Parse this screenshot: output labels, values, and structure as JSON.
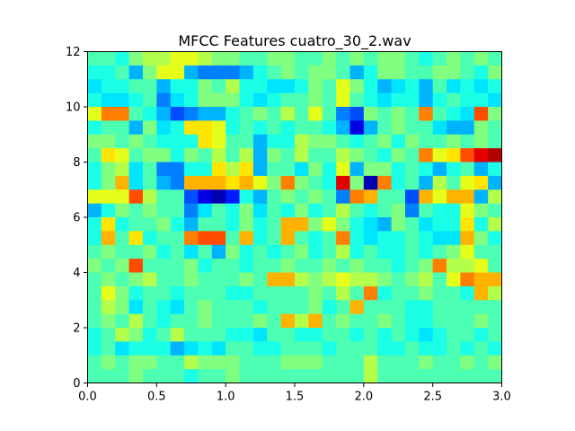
{
  "chart_data": {
    "type": "heatmap",
    "title": "MFCC Features cuatro_30_2.wav",
    "xlabel": "",
    "ylabel": "",
    "xlim": [
      0,
      3
    ],
    "ylim": [
      0,
      12
    ],
    "x_ticks": [
      "0.0",
      "0.5",
      "1.0",
      "1.5",
      "2.0",
      "2.5",
      "3.0"
    ],
    "y_ticks": [
      "0",
      "2",
      "4",
      "6",
      "8",
      "10",
      "12"
    ],
    "colormap": "jet",
    "vmin": 0,
    "vmax": 1,
    "x_bins": 30,
    "y_bins": 24,
    "grid": false,
    "legend": "none",
    "rows": [
      [
        0.45,
        0.45,
        0.4,
        0.5,
        0.55,
        0.55,
        0.6,
        0.6,
        0.55,
        0.5,
        0.5,
        0.45,
        0.45,
        0.5,
        0.5,
        0.45,
        0.45,
        0.5,
        0.45,
        0.5,
        0.45,
        0.5,
        0.5,
        0.45,
        0.4,
        0.45,
        0.5,
        0.45,
        0.5,
        0.45
      ],
      [
        0.4,
        0.4,
        0.45,
        0.3,
        0.5,
        0.6,
        0.6,
        0.3,
        0.25,
        0.25,
        0.25,
        0.3,
        0.4,
        0.45,
        0.5,
        0.45,
        0.5,
        0.5,
        0.45,
        0.3,
        0.4,
        0.5,
        0.5,
        0.45,
        0.45,
        0.5,
        0.5,
        0.45,
        0.4,
        0.5
      ],
      [
        0.35,
        0.4,
        0.4,
        0.45,
        0.45,
        0.3,
        0.4,
        0.4,
        0.5,
        0.45,
        0.55,
        0.4,
        0.4,
        0.35,
        0.35,
        0.4,
        0.5,
        0.45,
        0.6,
        0.5,
        0.4,
        0.3,
        0.35,
        0.4,
        0.3,
        0.45,
        0.35,
        0.4,
        0.35,
        0.4
      ],
      [
        0.4,
        0.35,
        0.35,
        0.4,
        0.45,
        0.25,
        0.35,
        0.4,
        0.5,
        0.5,
        0.5,
        0.4,
        0.35,
        0.4,
        0.45,
        0.45,
        0.5,
        0.45,
        0.6,
        0.45,
        0.4,
        0.35,
        0.4,
        0.4,
        0.3,
        0.4,
        0.45,
        0.4,
        0.4,
        0.35
      ],
      [
        0.6,
        0.75,
        0.75,
        0.45,
        0.4,
        0.3,
        0.2,
        0.25,
        0.3,
        0.3,
        0.4,
        0.45,
        0.5,
        0.45,
        0.55,
        0.45,
        0.6,
        0.45,
        0.25,
        0.2,
        0.5,
        0.45,
        0.5,
        0.45,
        0.75,
        0.45,
        0.4,
        0.35,
        0.8,
        0.5
      ],
      [
        0.4,
        0.45,
        0.45,
        0.3,
        0.5,
        0.35,
        0.4,
        0.65,
        0.65,
        0.6,
        0.4,
        0.45,
        0.4,
        0.45,
        0.4,
        0.45,
        0.45,
        0.4,
        0.3,
        0.1,
        0.3,
        0.45,
        0.5,
        0.45,
        0.45,
        0.35,
        0.3,
        0.3,
        0.5,
        0.45
      ],
      [
        0.5,
        0.5,
        0.45,
        0.5,
        0.45,
        0.4,
        0.4,
        0.4,
        0.65,
        0.6,
        0.45,
        0.45,
        0.3,
        0.4,
        0.4,
        0.55,
        0.5,
        0.5,
        0.45,
        0.4,
        0.45,
        0.5,
        0.4,
        0.5,
        0.45,
        0.45,
        0.5,
        0.45,
        0.5,
        0.45
      ],
      [
        0.45,
        0.65,
        0.6,
        0.45,
        0.5,
        0.5,
        0.4,
        0.5,
        0.45,
        0.55,
        0.45,
        0.55,
        0.3,
        0.5,
        0.45,
        0.55,
        0.45,
        0.45,
        0.55,
        0.5,
        0.45,
        0.4,
        0.5,
        0.45,
        0.75,
        0.6,
        0.65,
        0.8,
        0.9,
        0.95
      ],
      [
        0.4,
        0.5,
        0.55,
        0.35,
        0.45,
        0.25,
        0.25,
        0.4,
        0.4,
        0.65,
        0.55,
        0.65,
        0.3,
        0.45,
        0.45,
        0.35,
        0.5,
        0.4,
        0.6,
        0.3,
        0.5,
        0.5,
        0.4,
        0.45,
        0.4,
        0.3,
        0.4,
        0.45,
        0.3,
        0.4
      ],
      [
        0.4,
        0.5,
        0.7,
        0.35,
        0.45,
        0.3,
        0.25,
        0.7,
        0.7,
        0.7,
        0.65,
        0.7,
        0.6,
        0.5,
        0.75,
        0.5,
        0.45,
        0.4,
        0.9,
        0.5,
        0.05,
        0.75,
        0.4,
        0.45,
        0.3,
        0.55,
        0.45,
        0.6,
        0.65,
        0.3
      ],
      [
        0.6,
        0.6,
        0.6,
        0.8,
        0.55,
        0.45,
        0.45,
        0.2,
        0.1,
        0.05,
        0.15,
        0.4,
        0.3,
        0.45,
        0.5,
        0.45,
        0.5,
        0.45,
        0.25,
        0.75,
        0.7,
        0.45,
        0.45,
        0.2,
        0.7,
        0.6,
        0.7,
        0.7,
        0.3,
        0.55
      ],
      [
        0.3,
        0.4,
        0.5,
        0.45,
        0.5,
        0.45,
        0.45,
        0.25,
        0.35,
        0.45,
        0.4,
        0.5,
        0.35,
        0.45,
        0.4,
        0.5,
        0.4,
        0.45,
        0.55,
        0.45,
        0.4,
        0.45,
        0.5,
        0.25,
        0.45,
        0.4,
        0.4,
        0.6,
        0.5,
        0.45
      ],
      [
        0.4,
        0.65,
        0.4,
        0.45,
        0.45,
        0.5,
        0.4,
        0.3,
        0.45,
        0.45,
        0.4,
        0.5,
        0.4,
        0.45,
        0.7,
        0.7,
        0.5,
        0.6,
        0.5,
        0.4,
        0.35,
        0.3,
        0.5,
        0.45,
        0.35,
        0.4,
        0.4,
        0.65,
        0.4,
        0.55
      ],
      [
        0.4,
        0.7,
        0.45,
        0.65,
        0.4,
        0.45,
        0.45,
        0.75,
        0.8,
        0.8,
        0.45,
        0.7,
        0.4,
        0.45,
        0.7,
        0.45,
        0.4,
        0.45,
        0.75,
        0.4,
        0.35,
        0.4,
        0.4,
        0.45,
        0.4,
        0.35,
        0.35,
        0.7,
        0.5,
        0.4
      ],
      [
        0.45,
        0.5,
        0.45,
        0.45,
        0.5,
        0.4,
        0.45,
        0.35,
        0.45,
        0.3,
        0.5,
        0.4,
        0.45,
        0.4,
        0.45,
        0.5,
        0.4,
        0.45,
        0.55,
        0.4,
        0.45,
        0.4,
        0.4,
        0.45,
        0.4,
        0.45,
        0.5,
        0.6,
        0.45,
        0.45
      ],
      [
        0.5,
        0.45,
        0.5,
        0.8,
        0.45,
        0.45,
        0.45,
        0.5,
        0.4,
        0.45,
        0.45,
        0.4,
        0.45,
        0.45,
        0.5,
        0.45,
        0.45,
        0.5,
        0.45,
        0.5,
        0.45,
        0.45,
        0.4,
        0.45,
        0.5,
        0.75,
        0.55,
        0.55,
        0.6,
        0.45
      ],
      [
        0.45,
        0.5,
        0.45,
        0.5,
        0.55,
        0.45,
        0.45,
        0.5,
        0.45,
        0.45,
        0.45,
        0.5,
        0.45,
        0.7,
        0.7,
        0.55,
        0.5,
        0.55,
        0.6,
        0.55,
        0.55,
        0.5,
        0.45,
        0.5,
        0.55,
        0.45,
        0.6,
        0.75,
        0.7,
        0.7
      ],
      [
        0.45,
        0.6,
        0.5,
        0.4,
        0.45,
        0.45,
        0.4,
        0.45,
        0.45,
        0.45,
        0.4,
        0.4,
        0.45,
        0.45,
        0.45,
        0.45,
        0.5,
        0.45,
        0.55,
        0.45,
        0.75,
        0.4,
        0.45,
        0.45,
        0.5,
        0.45,
        0.45,
        0.4,
        0.7,
        0.55
      ],
      [
        0.45,
        0.55,
        0.5,
        0.35,
        0.45,
        0.4,
        0.35,
        0.45,
        0.5,
        0.45,
        0.45,
        0.45,
        0.4,
        0.45,
        0.45,
        0.45,
        0.5,
        0.4,
        0.45,
        0.7,
        0.45,
        0.45,
        0.45,
        0.4,
        0.4,
        0.45,
        0.45,
        0.45,
        0.45,
        0.45
      ],
      [
        0.45,
        0.5,
        0.45,
        0.55,
        0.45,
        0.4,
        0.45,
        0.45,
        0.5,
        0.45,
        0.45,
        0.45,
        0.5,
        0.45,
        0.7,
        0.55,
        0.7,
        0.45,
        0.5,
        0.45,
        0.45,
        0.5,
        0.45,
        0.4,
        0.4,
        0.45,
        0.45,
        0.45,
        0.5,
        0.45
      ],
      [
        0.4,
        0.45,
        0.55,
        0.5,
        0.4,
        0.45,
        0.55,
        0.45,
        0.45,
        0.45,
        0.4,
        0.4,
        0.35,
        0.45,
        0.45,
        0.4,
        0.4,
        0.45,
        0.45,
        0.4,
        0.45,
        0.4,
        0.45,
        0.4,
        0.35,
        0.4,
        0.45,
        0.45,
        0.4,
        0.45
      ],
      [
        0.4,
        0.45,
        0.35,
        0.4,
        0.4,
        0.4,
        0.3,
        0.35,
        0.4,
        0.35,
        0.45,
        0.45,
        0.4,
        0.4,
        0.45,
        0.45,
        0.45,
        0.4,
        0.45,
        0.45,
        0.45,
        0.4,
        0.4,
        0.45,
        0.4,
        0.4,
        0.45,
        0.4,
        0.45,
        0.4
      ],
      [
        0.45,
        0.5,
        0.45,
        0.5,
        0.5,
        0.45,
        0.45,
        0.55,
        0.5,
        0.5,
        0.5,
        0.45,
        0.45,
        0.45,
        0.5,
        0.5,
        0.5,
        0.45,
        0.45,
        0.45,
        0.55,
        0.45,
        0.45,
        0.45,
        0.5,
        0.45,
        0.45,
        0.5,
        0.45,
        0.5
      ],
      [
        0.45,
        0.45,
        0.45,
        0.5,
        0.45,
        0.45,
        0.45,
        0.4,
        0.45,
        0.45,
        0.5,
        0.45,
        0.45,
        0.45,
        0.45,
        0.45,
        0.45,
        0.45,
        0.45,
        0.45,
        0.55,
        0.45,
        0.45,
        0.45,
        0.45,
        0.45,
        0.45,
        0.45,
        0.45,
        0.45
      ]
    ]
  }
}
